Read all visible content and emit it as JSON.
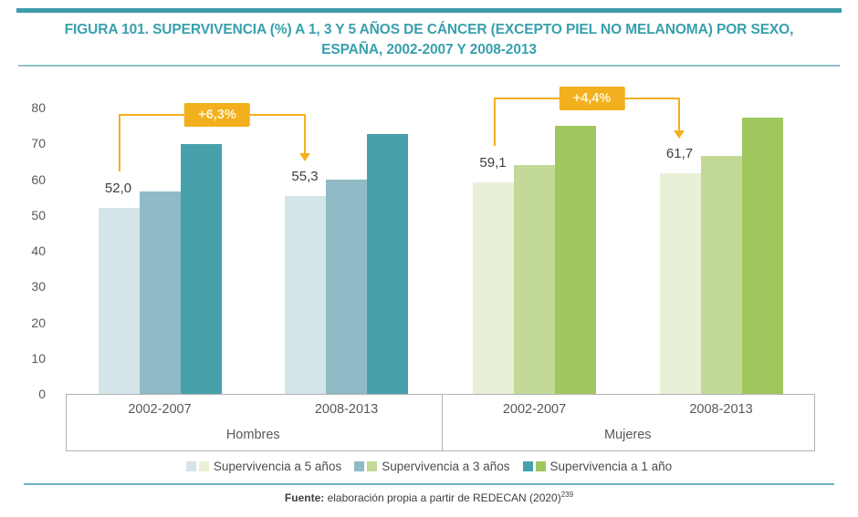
{
  "figure": {
    "title_line1": "FIGURA 101. SUPERVIVENCIA (%) A 1, 3 Y 5 AÑOS DE CÁNCER (EXCEPTO PIEL NO MELANOMA) POR SEXO,",
    "title_line2": "ESPAÑA, 2002-2007 Y 2008-2013",
    "source_label": "Fuente:",
    "source_text": " elaboración propia a partir de REDECAN (2020)",
    "source_superscript": "239"
  },
  "colors": {
    "title_teal": "#38a0ad",
    "rule_teal": "#3e9ba9",
    "annotation_amber": "#f2b01e",
    "axis_gray": "#b3b3b3",
    "text_gray": "#595959"
  },
  "chart_data": {
    "type": "bar",
    "title": "Supervivencia (%) a 1, 3 y 5 años de cáncer (excepto piel no melanoma) por sexo, España, 2002-2007 y 2008-2013",
    "ylim": [
      0,
      80
    ],
    "yticks": [
      0,
      10,
      20,
      30,
      40,
      50,
      60,
      70,
      80
    ],
    "grid": false,
    "legend_position": "bottom",
    "series_labels": [
      "Supervivencia a 5 años",
      "Supervivencia a 3 años",
      "Supervivencia a 1 año"
    ],
    "panels": [
      {
        "name": "Hombres",
        "palette": [
          "#d5e4e8",
          "#8fbac6",
          "#46a1ad"
        ],
        "annotation": "+6,3%",
        "groups": [
          {
            "category": "2002-2007",
            "values": [
              52.0,
              56.5,
              69.8
            ],
            "value_label": "52,0"
          },
          {
            "category": "2008-2013",
            "values": [
              55.3,
              60.0,
              72.5
            ],
            "value_label": "55,3"
          }
        ]
      },
      {
        "name": "Mujeres",
        "palette": [
          "#e8f0d8",
          "#c3d997",
          "#9fc75e"
        ],
        "annotation": "+4,4%",
        "groups": [
          {
            "category": "2002-2007",
            "values": [
              59.1,
              64.0,
              74.9
            ],
            "value_label": "59,1"
          },
          {
            "category": "2008-2013",
            "values": [
              61.7,
              66.4,
              77.1
            ],
            "value_label": "61,7"
          }
        ]
      }
    ],
    "legend": [
      {
        "label": "Supervivencia a 5 años",
        "swatches": [
          "#d5e4e8",
          "#e8f0d8"
        ]
      },
      {
        "label": "Supervivencia a 3 años",
        "swatches": [
          "#8fbac6",
          "#c3d997"
        ]
      },
      {
        "label": "Supervivencia a 1 año",
        "swatches": [
          "#46a1ad",
          "#9fc75e"
        ]
      }
    ]
  }
}
